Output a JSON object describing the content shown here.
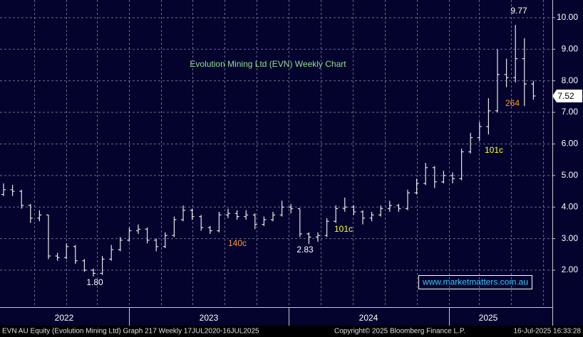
{
  "chart_data": {
    "type": "ohlc",
    "title": "Evolution Mining Ltd (EVN) Weekly Chart",
    "title_color": "#8fe08f",
    "color": "#e8e8e8",
    "categories": [
      null,
      null,
      null,
      null,
      null,
      null,
      null,
      null,
      null,
      null,
      null,
      null,
      null,
      null,
      null,
      null,
      null,
      null,
      null,
      null,
      null,
      null,
      null,
      null,
      null,
      null,
      null,
      null,
      null,
      null,
      null,
      null,
      null,
      null,
      null,
      null,
      null,
      null,
      null,
      null,
      null,
      null,
      null,
      null,
      null,
      null,
      null,
      null,
      null,
      null,
      null,
      null,
      null,
      null,
      null,
      null,
      null,
      null,
      null,
      null
    ],
    "open": [
      4.4,
      4.55,
      4.5,
      4.05,
      3.65,
      3.75,
      2.45,
      2.4,
      2.75,
      2.3,
      2.0,
      1.9,
      2.35,
      2.65,
      2.95,
      3.25,
      3.3,
      2.95,
      2.75,
      3.1,
      3.6,
      3.9,
      3.7,
      3.35,
      3.25,
      3.75,
      3.8,
      3.7,
      3.75,
      3.45,
      3.6,
      3.75,
      4.0,
      3.95,
      3.15,
      3.05,
      3.1,
      3.55,
      3.95,
      4.0,
      3.85,
      3.65,
      3.75,
      3.95,
      4.05,
      3.95,
      4.45,
      4.75,
      5.25,
      4.8,
      5.0,
      4.9,
      5.75,
      6.2,
      6.55,
      7.05,
      8.2,
      8.1,
      8.7,
      7.9
    ],
    "high": [
      4.75,
      4.7,
      4.55,
      4.1,
      3.9,
      3.75,
      2.55,
      2.85,
      2.8,
      2.35,
      2.05,
      2.45,
      2.8,
      3.05,
      3.35,
      3.45,
      3.35,
      3.0,
      3.2,
      3.7,
      4.05,
      3.95,
      3.75,
      3.4,
      3.85,
      3.95,
      3.9,
      3.9,
      3.8,
      3.7,
      3.85,
      4.2,
      4.1,
      3.95,
      3.2,
      3.2,
      3.65,
      4.05,
      4.3,
      4.05,
      3.9,
      3.85,
      4.05,
      4.2,
      4.1,
      4.55,
      4.9,
      5.4,
      5.3,
      5.15,
      5.1,
      5.85,
      6.35,
      6.7,
      7.45,
      9.0,
      8.7,
      9.77,
      9.35,
      8.0
    ],
    "low": [
      4.35,
      4.35,
      3.95,
      3.5,
      3.55,
      2.35,
      2.3,
      2.35,
      2.2,
      1.95,
      1.8,
      1.85,
      2.3,
      2.6,
      2.9,
      3.15,
      2.85,
      2.6,
      2.7,
      3.05,
      3.55,
      3.6,
      3.25,
      3.15,
      3.2,
      3.65,
      3.6,
      3.6,
      3.3,
      3.4,
      3.55,
      3.7,
      3.8,
      3.05,
      2.83,
      2.9,
      3.05,
      3.5,
      3.85,
      3.75,
      3.45,
      3.55,
      3.7,
      3.85,
      3.85,
      3.9,
      4.4,
      4.7,
      4.6,
      4.75,
      4.75,
      4.85,
      5.7,
      6.1,
      6.3,
      7.0,
      7.8,
      7.95,
      7.2,
      7.4
    ],
    "close": [
      4.55,
      4.5,
      4.05,
      3.65,
      3.75,
      2.45,
      2.4,
      2.75,
      2.3,
      2.0,
      1.9,
      2.35,
      2.65,
      2.95,
      3.25,
      3.3,
      2.95,
      2.75,
      3.1,
      3.6,
      3.9,
      3.7,
      3.35,
      3.25,
      3.75,
      3.8,
      3.7,
      3.75,
      3.45,
      3.6,
      3.75,
      4.0,
      3.95,
      3.15,
      3.05,
      3.1,
      3.55,
      3.95,
      4.0,
      3.85,
      3.65,
      3.75,
      3.95,
      4.05,
      3.95,
      4.45,
      4.75,
      5.25,
      4.8,
      5.0,
      4.9,
      5.75,
      6.2,
      6.55,
      7.05,
      8.2,
      8.1,
      8.7,
      7.9,
      7.52
    ],
    "ylim": [
      0.83,
      10.56
    ],
    "yticks": [
      {
        "value": 2,
        "label": "2.00"
      },
      {
        "value": 3,
        "label": "3.00"
      },
      {
        "value": 4,
        "label": "4.00"
      },
      {
        "value": 5,
        "label": "5.00"
      },
      {
        "value": 6,
        "label": "6.00"
      },
      {
        "value": 7,
        "label": "7.00"
      },
      {
        "value": 8,
        "label": "8.00"
      },
      {
        "value": 9,
        "label": "9.00"
      },
      {
        "value": 10,
        "label": "10.00"
      }
    ],
    "grid": true,
    "x_labels": [
      "2022",
      "2023",
      "2024",
      "2025"
    ],
    "annotations": [
      {
        "text": "9.77",
        "color": "#ffffff"
      },
      {
        "text": "264",
        "color": "#ff9933"
      },
      {
        "text": "101c",
        "color": "#ffff33"
      },
      {
        "text": "101c",
        "color": "#ffff33"
      },
      {
        "text": "2.83",
        "color": "#ffffff"
      },
      {
        "text": "140c",
        "color": "#ff9933"
      },
      {
        "text": "1.80",
        "color": "#ffffff"
      }
    ],
    "watermark": "www.marketmatters.com.au",
    "footer": {
      "left": "EVN AU Equity (Evolution Mining Ltd) Graph 217  Weekly 17JUL2020-16JUL2025",
      "center": "Copyright© 2025 Bloomberg Finance L.P.",
      "right": "16-Jul-2025 16:33:28"
    }
  }
}
